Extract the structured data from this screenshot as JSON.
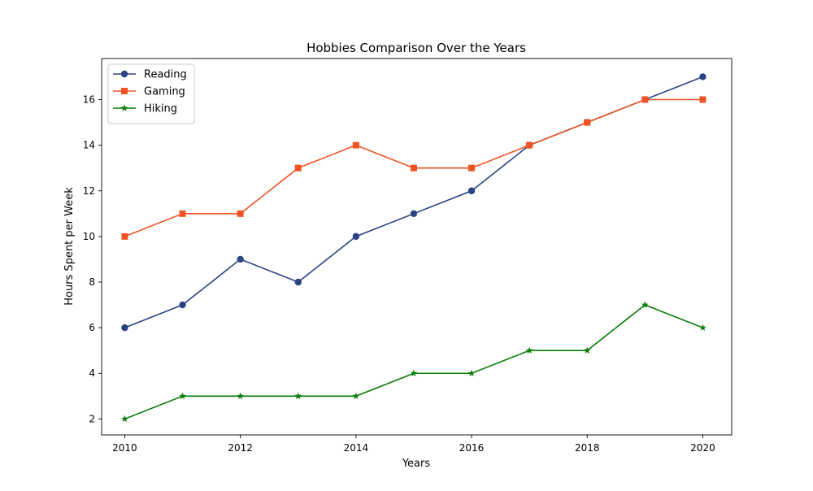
{
  "chart_data": {
    "type": "line",
    "title": "Hobbies Comparison Over the Years",
    "xlabel": "Years",
    "ylabel": "Hours Spent per Week",
    "x": [
      2010,
      2011,
      2012,
      2013,
      2014,
      2015,
      2016,
      2017,
      2018,
      2019,
      2020
    ],
    "xlim": [
      2009.6,
      2020.5
    ],
    "ylim": [
      1.3,
      17.8
    ],
    "x_ticks": [
      "2010",
      "2012",
      "2014",
      "2016",
      "2018",
      "2020"
    ],
    "y_ticks": [
      "2",
      "4",
      "6",
      "8",
      "10",
      "12",
      "14",
      "16"
    ],
    "grid": false,
    "legend_position": "top-left",
    "series": [
      {
        "name": "Reading",
        "color": "#2a4382",
        "marker": "circle",
        "values": [
          6,
          7,
          9,
          8,
          10,
          11,
          12,
          14,
          15,
          16,
          17
        ]
      },
      {
        "name": "Gaming",
        "color": "#f05323",
        "marker": "square",
        "values": [
          10,
          11,
          11,
          13,
          14,
          13,
          13,
          14,
          15,
          16,
          16
        ]
      },
      {
        "name": "Hiking",
        "color": "#0a7d0a",
        "marker": "star",
        "values": [
          2,
          3,
          3,
          3,
          3,
          4,
          4,
          5,
          5,
          7,
          6
        ]
      }
    ]
  }
}
